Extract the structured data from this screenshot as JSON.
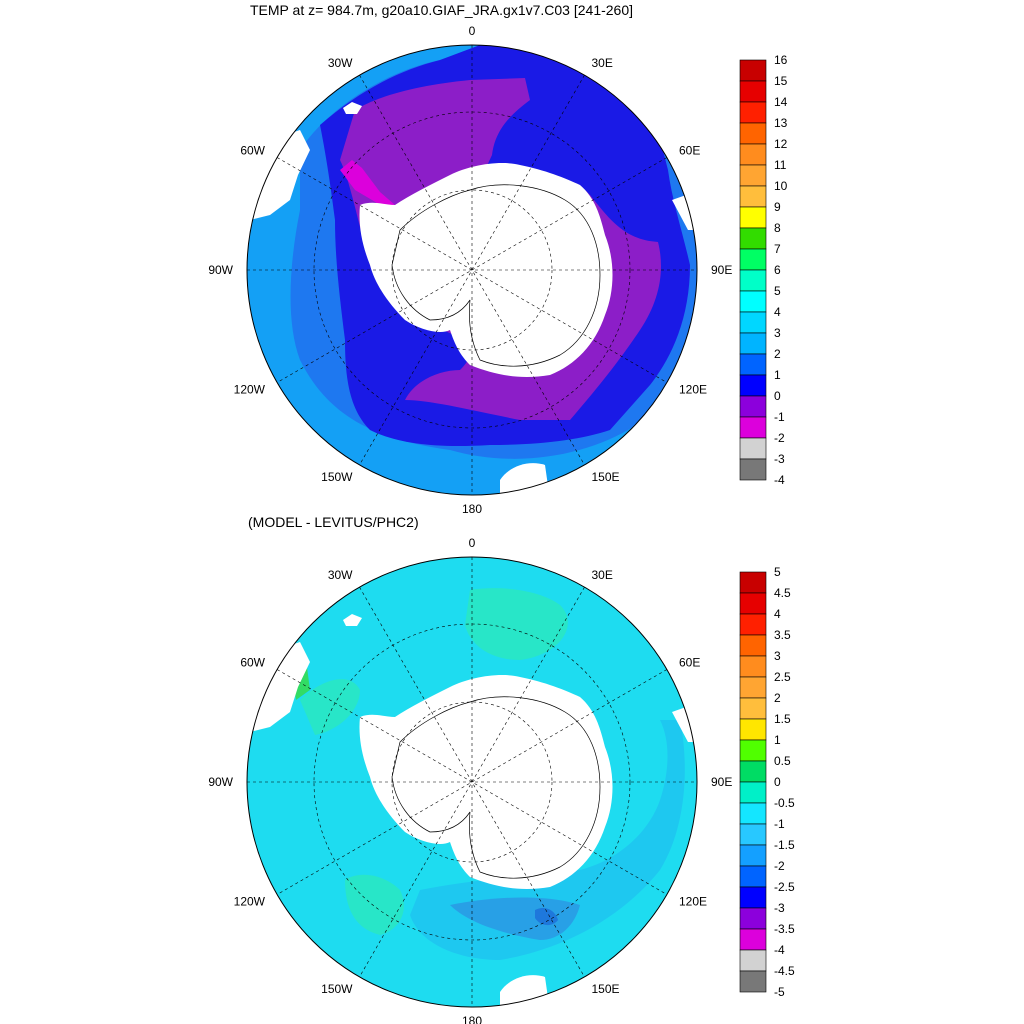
{
  "top_panel": {
    "title": "TEMP at z= 984.7m, g20a10.GIAF_JRA.gx1v7.C03 [241-260]",
    "lon_labels": [
      "0",
      "30E",
      "60E",
      "90E",
      "120E",
      "150E",
      "180",
      "150W",
      "120W",
      "90W",
      "60W",
      "30W"
    ],
    "colorbar": {
      "labels": [
        "16",
        "15",
        "14",
        "13",
        "12",
        "11",
        "10",
        "9",
        "8",
        "7",
        "6",
        "5",
        "4",
        "3",
        "2",
        "1",
        "0",
        "-1",
        "-2",
        "-3",
        "-4"
      ],
      "colors": [
        "#c80000",
        "#e60000",
        "#ff2000",
        "#ff6400",
        "#ff8c1e",
        "#ffa532",
        "#ffbe3c",
        "#ffff00",
        "#32dc00",
        "#00ff64",
        "#00ffc8",
        "#00ffff",
        "#00d7ff",
        "#00b4ff",
        "#0064ff",
        "#0000ff",
        "#8c00dc",
        "#dc00dc",
        "#d2d2d2",
        "#787878"
      ]
    },
    "field_colors": {
      "ocean_0_1": "#1a1ae6",
      "ocean_1_2": "#1e78f0",
      "ocean_2_3": "#14a0f5",
      "ocean_3_4": "#28c8fa",
      "shelf_minus1_0": "#8c1ec8",
      "shelf_minus2_minus1": "#dc00dc",
      "land": "#ffffff"
    }
  },
  "bottom_panel": {
    "title": "(MODEL - LEVITUS/PHC2)",
    "lon_labels": [
      "0",
      "30E",
      "60E",
      "90E",
      "120E",
      "150E",
      "180",
      "150W",
      "120W",
      "90W",
      "60W",
      "30W"
    ],
    "colorbar": {
      "labels": [
        "5",
        "4.5",
        "4",
        "3.5",
        "3",
        "2.5",
        "2",
        "1.5",
        "1",
        "0.5",
        "0",
        "-0.5",
        "-1",
        "-1.5",
        "-2",
        "-2.5",
        "-3",
        "-3.5",
        "-4",
        "-4.5",
        "-5"
      ],
      "colors": [
        "#c80000",
        "#e60000",
        "#ff2000",
        "#ff6400",
        "#ff8c1e",
        "#ffa532",
        "#ffbe3c",
        "#ffe600",
        "#50ff00",
        "#00dc64",
        "#00f0c8",
        "#14e6ff",
        "#28c8ff",
        "#14a0ff",
        "#0064ff",
        "#0000ff",
        "#8c00dc",
        "#dc00dc",
        "#d2d2d2",
        "#787878"
      ]
    },
    "field_colors": {
      "diff_minus1_minus0_5": "#1edcf0",
      "diff_minus0_5_0": "#28e6c8",
      "diff_minus1_5_minus1": "#1ec8f0",
      "diff_minus2_minus1_5": "#28a0e6",
      "diff_minus2_5_minus2": "#1e78dc",
      "diff_0_0_5": "#32dc64",
      "land": "#ffffff"
    }
  }
}
